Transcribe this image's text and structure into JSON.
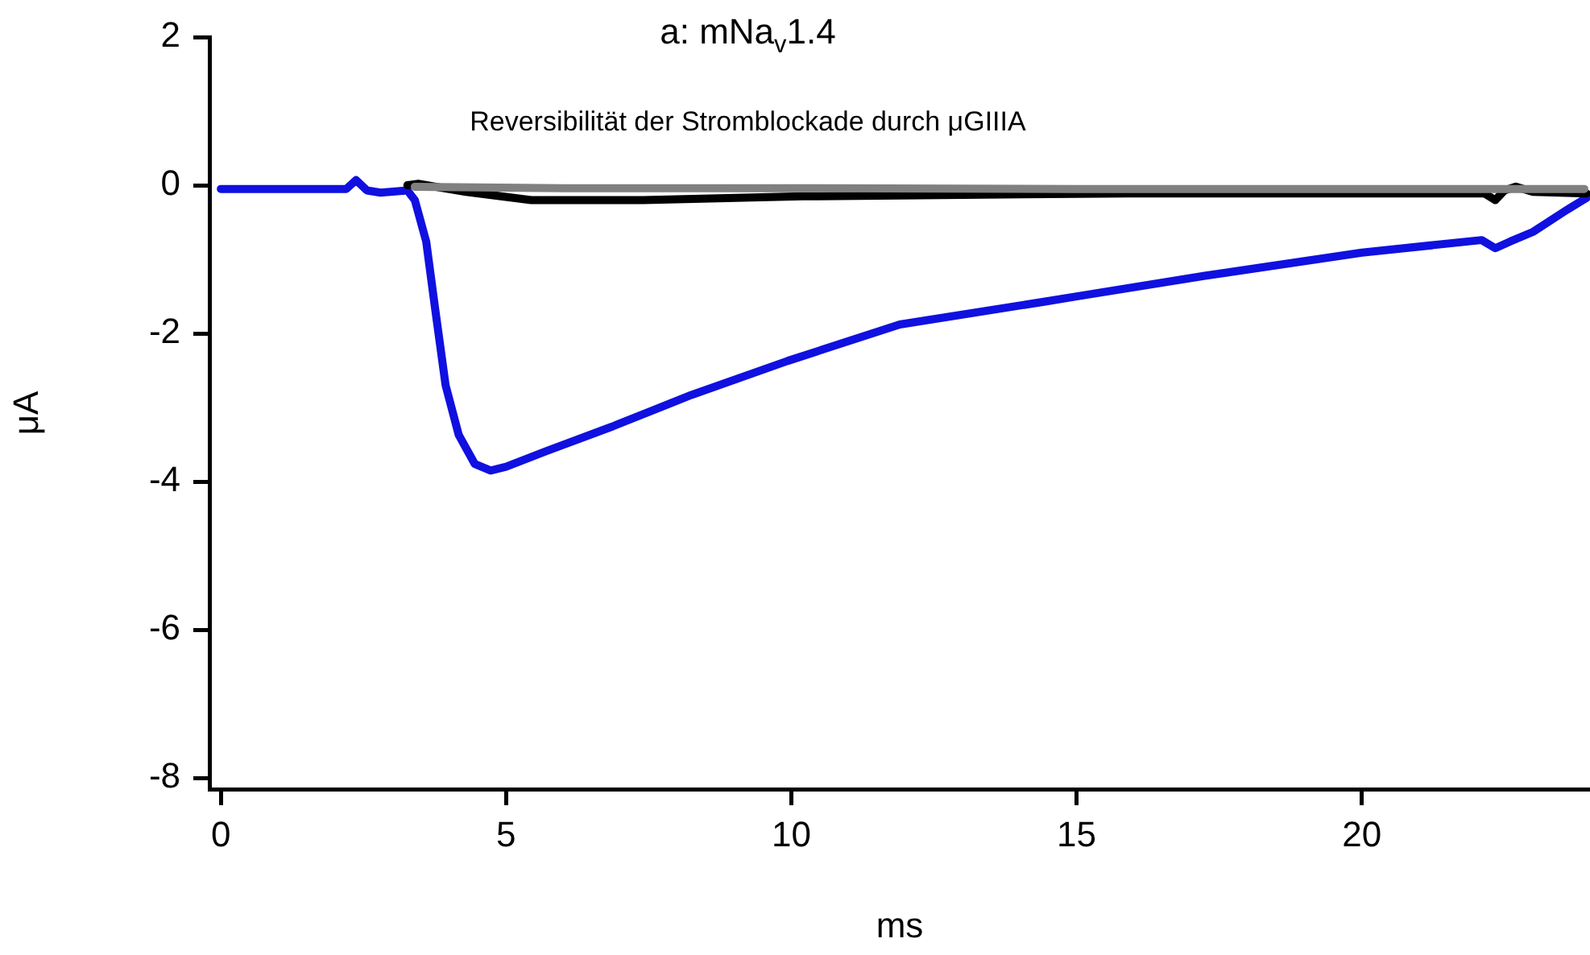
{
  "chart_data": {
    "type": "line",
    "title": "a: mNa$_{v}$1.4",
    "subtitle": "Reversibilität der Stromblockade durch μGIIIA",
    "xlabel": "ms",
    "ylabel": "μA",
    "xlim": [
      -0.2,
      24
    ],
    "ylim": [
      -8.15,
      2
    ],
    "xticks": [
      0,
      5,
      10,
      15,
      20
    ],
    "yticks": [
      2,
      0,
      -2,
      -4,
      -6,
      -8
    ],
    "grid": false,
    "legend": false,
    "marker": "none",
    "line_style": "solid",
    "series": [
      {
        "color": "#808080",
        "x": [
          3.4,
          6,
          10,
          15,
          20,
          22.3,
          23.9
        ],
        "values": [
          -0.02,
          -0.04,
          -0.04,
          -0.05,
          -0.05,
          -0.05,
          -0.05
        ]
      },
      {
        "color": "#000000",
        "x": [
          3.27,
          3.46,
          4.3,
          5.44,
          7.4,
          10.2,
          15.9,
          21.5,
          22.15,
          22.34,
          22.5,
          22.7,
          23.0,
          23.94
        ],
        "values": [
          0,
          0.02,
          -0.09,
          -0.2,
          -0.2,
          -0.15,
          -0.11,
          -0.11,
          -0.11,
          -0.2,
          -0.07,
          -0.02,
          -0.09,
          -0.11
        ]
      },
      {
        "color": "#1010e0",
        "x": [
          0,
          2.2,
          2.37,
          2.56,
          2.8,
          3.27,
          3.4,
          3.6,
          3.75,
          3.94,
          4.17,
          4.45,
          4.73,
          5.0,
          5.7,
          6.85,
          8.25,
          9.94,
          11.9,
          14.45,
          15,
          17.27,
          20,
          22.1,
          22.34,
          22.6,
          23.0,
          23.6,
          23.94
        ],
        "values": [
          -0.05,
          -0.05,
          0.07,
          -0.07,
          -0.1,
          -0.07,
          -0.2,
          -0.76,
          -1.63,
          -2.7,
          -3.37,
          -3.76,
          -3.85,
          -3.8,
          -3.59,
          -3.26,
          -2.83,
          -2.37,
          -1.88,
          -1.57,
          -1.5,
          -1.22,
          -0.91,
          -0.74,
          -0.85,
          -0.76,
          -0.63,
          -0.33,
          -0.17
        ]
      }
    ]
  }
}
